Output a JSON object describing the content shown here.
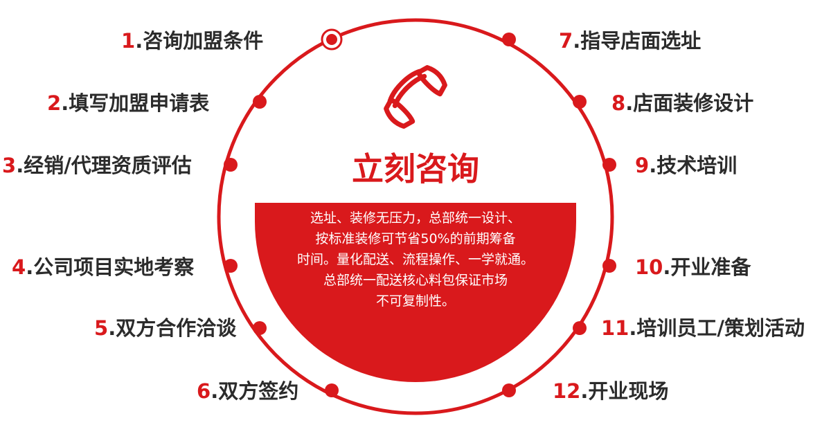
{
  "accent_color": "#d9191c",
  "ring_color": "#d9191c",
  "text_color": "#2b2b2b",
  "icon": "phone-handset-icon",
  "headline": "立刻咨询",
  "description_lines": [
    "选址、装修无压力，总部统一设计、",
    "按标准装修可节省50%的前期筹备",
    "时间。量化配送、流程操作、一学就通。",
    "总部统一配送核心料包保证市场",
    "不可复制性。"
  ],
  "steps": [
    {
      "num": "1",
      "text": ".咨询加盟条件"
    },
    {
      "num": "2",
      "text": ".填写加盟申请表"
    },
    {
      "num": "3",
      "text": ".经销/代理资质评估"
    },
    {
      "num": "4",
      "text": ".公司项目实地考察"
    },
    {
      "num": "5",
      "text": ".双方合作洽谈"
    },
    {
      "num": "6",
      "text": ".双方签约"
    },
    {
      "num": "7",
      "text": ".指导店面选址"
    },
    {
      "num": "8",
      "text": ".店面装修设计"
    },
    {
      "num": "9",
      "text": ".技术培训"
    },
    {
      "num": "10",
      "text": ".开业准备"
    },
    {
      "num": "11",
      "text": ".培训员工/策划活动"
    },
    {
      "num": "12",
      "text": ".开业现场"
    }
  ]
}
